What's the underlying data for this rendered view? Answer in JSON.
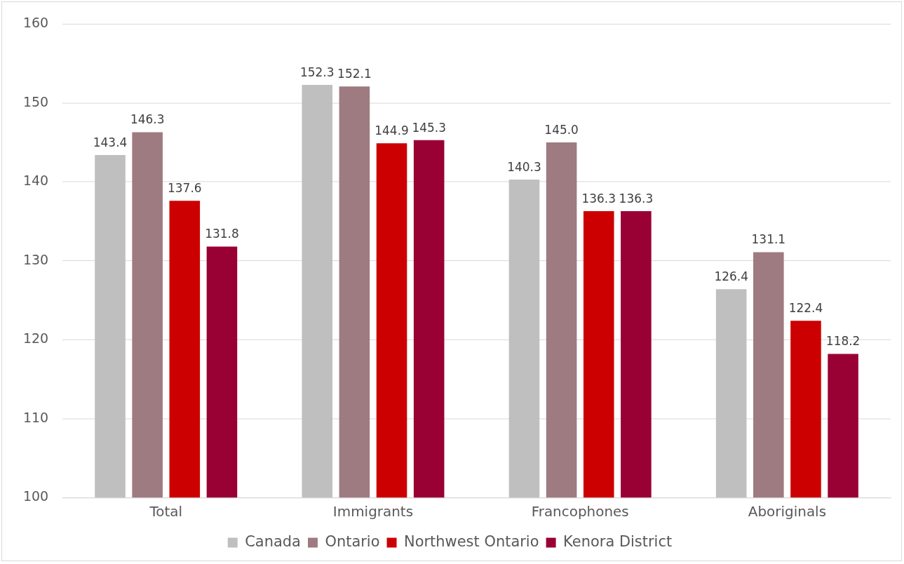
{
  "chart_data": {
    "type": "bar",
    "categories": [
      "Total",
      "Immigrants",
      "Francophones",
      "Aboriginals"
    ],
    "series": [
      {
        "name": "Canada",
        "color": "#bfbfbf",
        "values": [
          143.4,
          152.3,
          140.3,
          126.4
        ],
        "value_labels": [
          "143.4",
          "152.3",
          "140.3",
          "126.4"
        ]
      },
      {
        "name": "Ontario",
        "color": "#9e7b80",
        "values": [
          146.3,
          152.1,
          145.0,
          131.1
        ],
        "value_labels": [
          "146.3",
          "152.1",
          "145.0",
          "131.1"
        ]
      },
      {
        "name": "Northwest Ontario",
        "color": "#cc0000",
        "values": [
          137.6,
          144.9,
          136.3,
          122.4
        ],
        "value_labels": [
          "137.6",
          "144.9",
          "136.3",
          "122.4"
        ]
      },
      {
        "name": "Kenora District",
        "color": "#990033",
        "values": [
          131.8,
          145.3,
          136.3,
          118.2
        ],
        "value_labels": [
          "131.8",
          "145.3",
          "136.3",
          "118.2"
        ]
      }
    ],
    "ylim": [
      100,
      160
    ],
    "yticks": [
      100,
      110,
      120,
      130,
      140,
      150,
      160
    ],
    "grid": "y",
    "legend": "bottom"
  }
}
